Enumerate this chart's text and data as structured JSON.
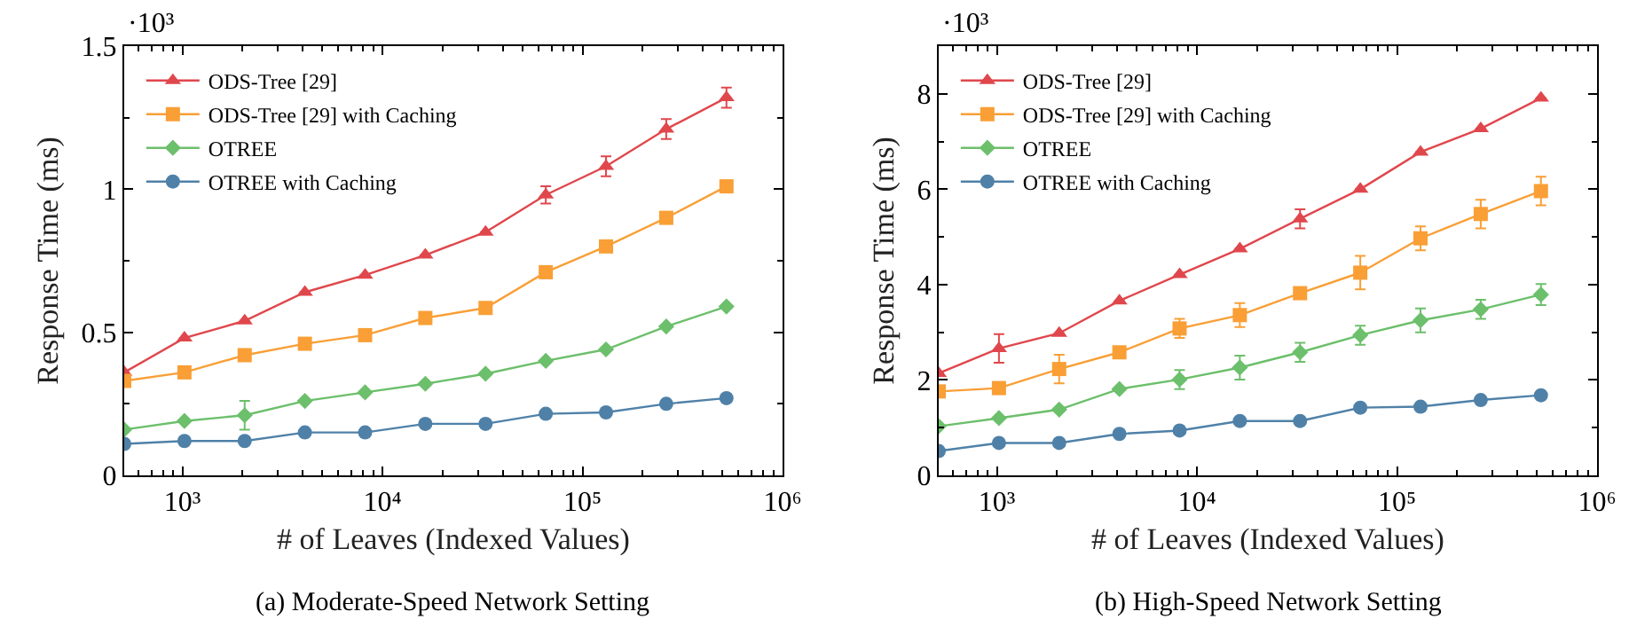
{
  "chart_data": [
    {
      "type": "line",
      "xlabel": "# of Leaves (Indexed Values)",
      "ylabel": "Response Time (ms)",
      "annotations": [
        "·10³",
        "(a) Moderate-Speed Network Setting"
      ],
      "log": "x",
      "grid": false,
      "legend": "top left",
      "xlim": [
        512,
        1000000
      ],
      "xticks": [
        {
          "value": 1000,
          "label": "10³"
        },
        {
          "value": 10000,
          "label": "10⁴"
        },
        {
          "value": 100000,
          "label": "10⁵"
        },
        {
          "value": 1000000,
          "label": "10⁶"
        }
      ],
      "ylim": [
        0,
        1.5
      ],
      "yticks": [
        0,
        0.5,
        1,
        1.5
      ],
      "x": [
        512,
        1024,
        2048,
        4096,
        8192,
        16384,
        32768,
        65536,
        131072,
        262144,
        524288
      ],
      "series": [
        {
          "name": "ODS-Tree [29]",
          "color": "#e0474c",
          "marker": "triangle",
          "values": [
            0.36,
            0.48,
            0.54,
            0.64,
            0.7,
            0.77,
            0.85,
            0.98,
            1.08,
            1.21,
            1.32
          ],
          "errors": [
            null,
            null,
            null,
            null,
            null,
            null,
            null,
            0.03,
            0.035,
            0.035,
            0.035
          ]
        },
        {
          "name": "ODS-Tree [29] with Caching",
          "color": "#f99f36",
          "marker": "square",
          "values": [
            0.33,
            0.36,
            0.42,
            0.46,
            0.49,
            0.55,
            0.585,
            0.71,
            0.8,
            0.9,
            1.01
          ]
        },
        {
          "name": "OTREE",
          "color": "#6cbf6b",
          "marker": "diamond",
          "values": [
            0.16,
            0.19,
            0.21,
            0.26,
            0.29,
            0.32,
            0.355,
            0.4,
            0.44,
            0.52,
            0.59
          ],
          "errors": [
            null,
            null,
            0.05,
            null,
            null,
            null,
            null,
            null,
            null,
            null,
            null
          ]
        },
        {
          "name": "OTREE with Caching",
          "color": "#4f81a8",
          "marker": "circle",
          "values": [
            0.11,
            0.12,
            0.12,
            0.15,
            0.15,
            0.18,
            0.18,
            0.215,
            0.22,
            0.25,
            0.27
          ]
        }
      ]
    },
    {
      "type": "line",
      "xlabel": "# of Leaves (Indexed Values)",
      "ylabel": "Response Time (ms)",
      "annotations": [
        "·10³",
        "(b) High-Speed Network Setting"
      ],
      "log": "x",
      "grid": false,
      "legend": "top left",
      "xlim": [
        512,
        1000000
      ],
      "xticks": [
        {
          "value": 1000,
          "label": "10³"
        },
        {
          "value": 10000,
          "label": "10⁴"
        },
        {
          "value": 100000,
          "label": "10⁵"
        },
        {
          "value": 1000000,
          "label": "10⁶"
        }
      ],
      "ylim": [
        0,
        9
      ],
      "yticks": [
        0,
        2,
        4,
        6,
        8
      ],
      "x": [
        512,
        1024,
        2048,
        4096,
        8192,
        16384,
        32768,
        65536,
        131072,
        262144,
        524288
      ],
      "series": [
        {
          "name": "ODS-Tree [29]",
          "color": "#e0474c",
          "marker": "triangle",
          "values": [
            2.14,
            2.66,
            2.98,
            3.66,
            4.21,
            4.75,
            5.38,
            6.0,
            6.78,
            7.27,
            7.91
          ],
          "errors": [
            null,
            0.3,
            null,
            null,
            null,
            null,
            0.2,
            null,
            null,
            null,
            null
          ]
        },
        {
          "name": "ODS-Tree [29] with Caching",
          "color": "#f99f36",
          "marker": "square",
          "values": [
            1.76,
            1.83,
            2.23,
            2.58,
            3.08,
            3.36,
            3.82,
            4.25,
            4.97,
            5.48,
            5.96
          ],
          "errors": [
            null,
            null,
            0.3,
            null,
            0.2,
            0.25,
            null,
            0.35,
            0.25,
            0.3,
            0.3
          ]
        },
        {
          "name": "OTREE",
          "color": "#6cbf6b",
          "marker": "diamond",
          "values": [
            1.03,
            1.2,
            1.38,
            1.81,
            2.01,
            2.26,
            2.58,
            2.94,
            3.25,
            3.48,
            3.79
          ],
          "errors": [
            null,
            null,
            null,
            null,
            0.2,
            0.25,
            0.2,
            0.2,
            0.25,
            0.2,
            0.22
          ]
        },
        {
          "name": "OTREE with Caching",
          "color": "#4f81a8",
          "marker": "circle",
          "values": [
            0.51,
            0.68,
            0.68,
            0.87,
            0.94,
            1.14,
            1.14,
            1.42,
            1.44,
            1.58,
            1.68
          ]
        }
      ]
    }
  ]
}
